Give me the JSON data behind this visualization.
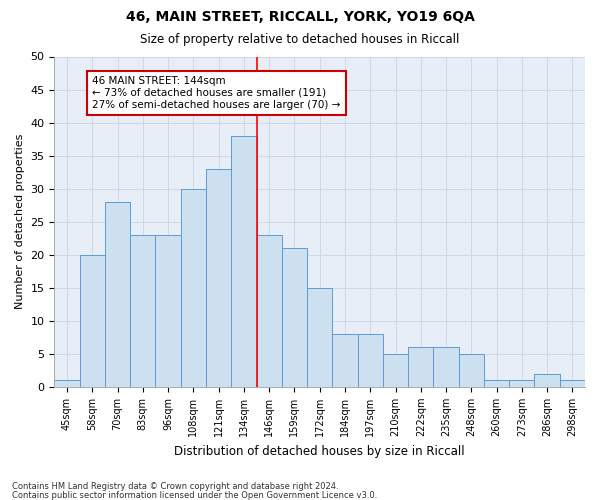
{
  "title1": "46, MAIN STREET, RICCALL, YORK, YO19 6QA",
  "title2": "Size of property relative to detached houses in Riccall",
  "xlabel": "Distribution of detached houses by size in Riccall",
  "ylabel": "Number of detached properties",
  "categories": [
    "45sqm",
    "58sqm",
    "70sqm",
    "83sqm",
    "96sqm",
    "108sqm",
    "121sqm",
    "134sqm",
    "146sqm",
    "159sqm",
    "172sqm",
    "184sqm",
    "197sqm",
    "210sqm",
    "222sqm",
    "235sqm",
    "248sqm",
    "260sqm",
    "273sqm",
    "286sqm",
    "298sqm"
  ],
  "values": [
    1,
    20,
    28,
    23,
    23,
    30,
    33,
    38,
    23,
    21,
    15,
    8,
    8,
    5,
    6,
    6,
    5,
    1,
    1,
    2,
    1
  ],
  "bar_color": "#cce0f0",
  "bar_edge_color": "#5b9bd5",
  "grid_color": "#d0d8e8",
  "background_color": "#e8eef8",
  "red_line_index": 7.5,
  "annotation_text": "46 MAIN STREET: 144sqm\n← 73% of detached houses are smaller (191)\n27% of semi-detached houses are larger (70) →",
  "annotation_box_color": "#ffffff",
  "annotation_box_edge": "#cc0000",
  "footnote1": "Contains HM Land Registry data © Crown copyright and database right 2024.",
  "footnote2": "Contains public sector information licensed under the Open Government Licence v3.0.",
  "ylim": [
    0,
    50
  ],
  "yticks": [
    0,
    5,
    10,
    15,
    20,
    25,
    30,
    35,
    40,
    45,
    50
  ]
}
